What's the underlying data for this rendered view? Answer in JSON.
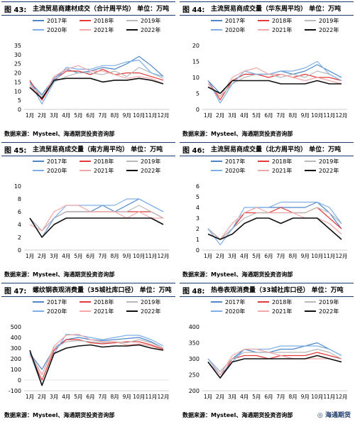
{
  "months": [
    "1月",
    "2月",
    "3月",
    "4月",
    "5月",
    "6月",
    "7月",
    "8月",
    "9月",
    "10月",
    "11月",
    "12月"
  ],
  "legend": [
    "2017年",
    "2018年",
    "2019年",
    "2020年",
    "2021年",
    "2022年"
  ],
  "colors": {
    "2017年": "#4f87c9",
    "2018年": "#e23b3b",
    "2019年": "#b9b9b9",
    "2020年": "#7eb0e6",
    "2021年": "#f0a8a8",
    "2022年": "#111111"
  },
  "source_text": "数据来源：Mysteel、海通期货投资咨询部",
  "watermark": "海通期货",
  "panels": [
    {
      "fig": "图 43:",
      "title": "主流贸易商建材成交（合计周平均） 单位：万吨",
      "chart_data": {
        "type": "line",
        "yticks": [
          "35",
          "30",
          "25",
          "20",
          "15",
          "10",
          "5",
          "0"
        ],
        "ylim": [
          0,
          35
        ],
        "series": [
          {
            "name": "2017年",
            "values": [
              15,
              8,
              17,
              22,
              20,
              21,
              23,
              22,
              25,
              29,
              24,
              18
            ]
          },
          {
            "name": "2018年",
            "values": [
              16,
              5,
              16,
              21,
              21,
              19,
              22,
              19,
              20,
              20,
              18,
              16
            ]
          },
          {
            "name": "2019年",
            "values": [
              14,
              7,
              15,
              18,
              20,
              20,
              19,
              21,
              18,
              23,
              20,
              17
            ]
          },
          {
            "name": "2020年",
            "values": [
              15,
              3,
              15,
              23,
              22,
              22,
              24,
              24,
              26,
              27,
              20,
              18
            ]
          },
          {
            "name": "2021年",
            "values": [
              13,
              6,
              18,
              22,
              24,
              21,
              21,
              19,
              17,
              18,
              17,
              14
            ]
          },
          {
            "name": "2022年",
            "values": [
              12,
              6,
              16,
              17,
              17,
              17,
              15,
              16,
              16,
              17,
              16,
              14
            ]
          }
        ]
      }
    },
    {
      "fig": "图 44:",
      "title": "主流贸易商成交量（华东周平均） 单位：万吨",
      "chart_data": {
        "type": "line",
        "yticks": [
          "20",
          "15",
          "10",
          "5",
          "0"
        ],
        "ylim": [
          0,
          20
        ],
        "series": [
          {
            "name": "2017年",
            "values": [
              9,
              5,
              9,
              11,
              11,
              11,
              12,
              11,
              12,
              14,
              12,
              10
            ]
          },
          {
            "name": "2018年",
            "values": [
              9,
              3,
              9,
              11,
              11,
              10,
              11,
              10,
              11,
              10,
              10,
              9
            ]
          },
          {
            "name": "2019年",
            "values": [
              8,
              4,
              8,
              10,
              11,
              11,
              10,
              11,
              10,
              12,
              11,
              9
            ]
          },
          {
            "name": "2020年",
            "values": [
              9,
              2,
              8,
              12,
              11,
              11,
              12,
              12,
              13,
              15,
              11,
              9
            ]
          },
          {
            "name": "2021年",
            "values": [
              8,
              4,
              10,
              12,
              13,
              11,
              11,
              10,
              9,
              10,
              9,
              8
            ]
          },
          {
            "name": "2022年",
            "values": [
              7,
              5,
              9,
              9,
              9,
              9,
              8,
              8,
              8,
              9,
              8,
              8
            ]
          }
        ]
      }
    },
    {
      "fig": "图 45:",
      "title": "主流贸易商成交量（南方周平均） 单位：万吨",
      "chart_data": {
        "type": "line",
        "yticks": [
          "10",
          "8",
          "6",
          "4",
          "2",
          "0"
        ],
        "ylim": [
          0,
          10
        ],
        "series": [
          {
            "name": "2017年",
            "values": [
              5,
              3,
              5,
              6,
              6,
              6,
              7,
              6,
              7,
              8,
              7,
              6
            ]
          },
          {
            "name": "2018年",
            "values": [
              5,
              2,
              5,
              6,
              6,
              6,
              6,
              6,
              6,
              6,
              6,
              5
            ]
          },
          {
            "name": "2019年",
            "values": [
              5,
              3,
              5,
              6,
              6,
              6,
              6,
              6,
              6,
              7,
              6,
              5
            ]
          },
          {
            "name": "2020年",
            "values": [
              5,
              2,
              5,
              7,
              7,
              7,
              7,
              7,
              8,
              8,
              7,
              6
            ]
          },
          {
            "name": "2021年",
            "values": [
              4,
              3,
              6,
              7,
              7,
              6,
              6,
              6,
              5,
              6,
              5,
              5
            ]
          },
          {
            "name": "2022年",
            "values": [
              5,
              2,
              4,
              5,
              5,
              5,
              5,
              5,
              5,
              5,
              5,
              4
            ]
          }
        ]
      }
    },
    {
      "fig": "图 46:",
      "title": "主流贸易商成交量（北方周平均） 单位：万吨",
      "chart_data": {
        "type": "line",
        "yticks": [
          "6",
          "5",
          "4",
          "3",
          "2",
          "1",
          "0"
        ],
        "ylim": [
          0,
          6
        ],
        "series": [
          {
            "name": "2017年",
            "values": [
              2,
              1,
              2,
              3.5,
              4,
              4,
              4,
              4,
              4,
              4.5,
              3.5,
              2
            ]
          },
          {
            "name": "2018年",
            "values": [
              2,
              1,
              2,
              3.5,
              3.5,
              3.5,
              4,
              3.5,
              3.5,
              4,
              3,
              2
            ]
          },
          {
            "name": "2019年",
            "values": [
              2,
              1,
              2,
              3,
              3.5,
              3.5,
              3.5,
              3.5,
              3.5,
              4,
              3.5,
              2.5
            ]
          },
          {
            "name": "2020年",
            "values": [
              2,
              0.5,
              2,
              4,
              4,
              4,
              4.5,
              4.5,
              4.5,
              4.5,
              4,
              2.5
            ]
          },
          {
            "name": "2021年",
            "values": [
              1.5,
              1,
              2.5,
              3.5,
              4,
              3.5,
              3.5,
              3.5,
              3,
              3,
              2.5,
              1.5
            ]
          },
          {
            "name": "2022年",
            "values": [
              1.5,
              1,
              1.5,
              2.5,
              3,
              3,
              2.5,
              3,
              3,
              3,
              2,
              1
            ]
          }
        ]
      }
    },
    {
      "fig": "图 47:",
      "title": "螺纹钢表观消费量（35城社库口径） 单位：万吨",
      "chart_data": {
        "type": "line",
        "yticks": [
          "500",
          "400",
          "300",
          "200",
          "100",
          "0",
          "-100"
        ],
        "ylim": [
          -100,
          500
        ],
        "series": [
          {
            "name": "2017年",
            "values": [
              250,
              100,
              300,
              380,
              400,
              380,
              370,
              380,
              390,
              400,
              360,
              300
            ]
          },
          {
            "name": "2018年",
            "values": [
              250,
              0,
              280,
              380,
              380,
              350,
              340,
              350,
              360,
              360,
              330,
              290
            ]
          },
          {
            "name": "2019年",
            "values": [
              260,
              50,
              300,
              360,
              370,
              360,
              350,
              360,
              350,
              380,
              350,
              300
            ]
          },
          {
            "name": "2020年",
            "values": [
              250,
              -50,
              250,
              430,
              420,
              400,
              380,
              400,
              420,
              420,
              380,
              320
            ]
          },
          {
            "name": "2021年",
            "values": [
              230,
              50,
              320,
              420,
              430,
              380,
              360,
              360,
              330,
              340,
              320,
              280
            ]
          },
          {
            "name": "2022年",
            "values": [
              280,
              -50,
              250,
              300,
              320,
              330,
              310,
              320,
              320,
              330,
              300,
              280
            ]
          }
        ]
      }
    },
    {
      "fig": "图 48:",
      "title": "热卷表观消费量（33城社库口径） 单位：万吨",
      "chart_data": {
        "type": "line",
        "yticks": [
          "400",
          "350",
          "300",
          "250",
          "200"
        ],
        "ylim": [
          200,
          400
        ],
        "series": [
          {
            "name": "2017年",
            "values": [
              300,
              260,
              300,
              330,
              320,
              320,
              330,
              330,
              340,
              350,
              330,
              310
            ]
          },
          {
            "name": "2018年",
            "values": [
              290,
              240,
              300,
              310,
              310,
              300,
              310,
              310,
              310,
              320,
              310,
              300
            ]
          },
          {
            "name": "2019年",
            "values": [
              300,
              260,
              300,
              320,
              320,
              320,
              320,
              320,
              320,
              330,
              320,
              300
            ]
          },
          {
            "name": "2020年",
            "values": [
              300,
              250,
              290,
              330,
              330,
              330,
              340,
              340,
              340,
              340,
              330,
              310
            ]
          },
          {
            "name": "2021年",
            "values": [
              290,
              250,
              310,
              330,
              330,
              320,
              310,
              300,
              300,
              300,
              300,
              290
            ]
          },
          {
            "name": "2022年",
            "values": [
              290,
              240,
              290,
              300,
              300,
              300,
              300,
              300,
              300,
              310,
              300,
              290
            ]
          }
        ]
      }
    }
  ]
}
